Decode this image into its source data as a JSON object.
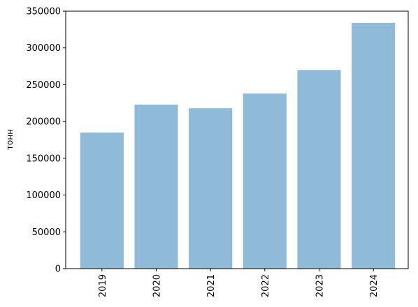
{
  "chart_data": {
    "type": "bar",
    "y_label": "тонн",
    "categories": [
      "2019",
      "2020",
      "2021",
      "2022",
      "2023",
      "2024"
    ],
    "values": [
      185000,
      223000,
      218000,
      238000,
      270000,
      334000
    ],
    "color": "#8fbbd9",
    "ylim": [
      0,
      350000
    ],
    "yticks": [
      0,
      50000,
      100000,
      150000,
      200000,
      250000,
      300000,
      350000
    ],
    "grid": false
  }
}
